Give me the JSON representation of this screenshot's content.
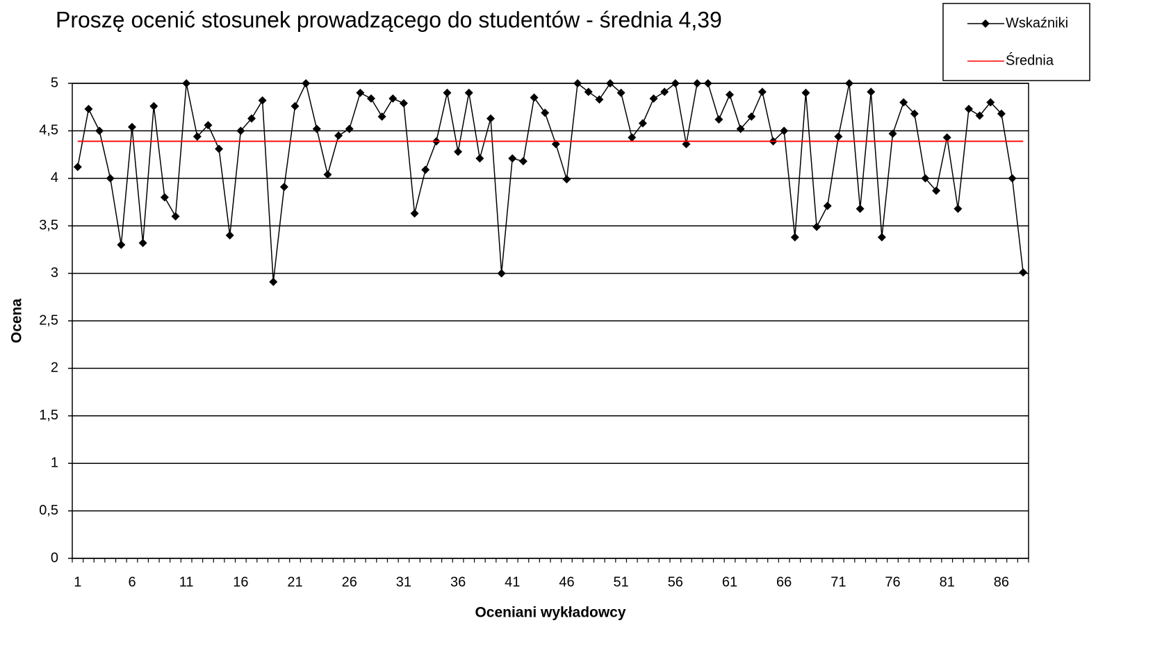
{
  "chart_data": {
    "type": "line",
    "title": "Proszę ocenić stosunek prowadzącego do studentów - średnia 4,39",
    "x_label": "Oceniani wykładowcy",
    "y_label": "Ocena",
    "categories": [
      "1",
      null,
      null,
      null,
      null,
      "6",
      null,
      null,
      null,
      null,
      "11",
      null,
      null,
      null,
      null,
      "16",
      null,
      null,
      null,
      null,
      "21",
      null,
      null,
      null,
      null,
      "26",
      null,
      null,
      null,
      null,
      "31",
      null,
      null,
      null,
      null,
      "36",
      null,
      null,
      null,
      null,
      "41",
      null,
      null,
      null,
      null,
      "46",
      null,
      null,
      null,
      null,
      "51",
      null,
      null,
      null,
      null,
      "56",
      null,
      null,
      null,
      null,
      "61",
      null,
      null,
      null,
      null,
      "66",
      null,
      null,
      null,
      null,
      "71",
      null,
      null,
      null,
      null,
      "76",
      null,
      null,
      null,
      null,
      "81",
      null,
      null,
      null,
      null,
      "86",
      null,
      null
    ],
    "series": [
      {
        "name": "Wskaźniki",
        "color": "#000000",
        "marker": "diamond",
        "values": [
          4.12,
          4.73,
          4.5,
          4.0,
          3.3,
          4.54,
          3.32,
          4.76,
          3.8,
          3.6,
          5.0,
          4.44,
          4.56,
          4.31,
          3.4,
          4.5,
          4.63,
          4.82,
          2.91,
          3.91,
          4.76,
          5.0,
          4.52,
          4.04,
          4.45,
          4.52,
          4.9,
          4.84,
          4.65,
          4.84,
          4.79,
          3.63,
          4.09,
          4.39,
          4.9,
          4.28,
          4.9,
          4.21,
          4.63,
          3.0,
          4.21,
          4.18,
          4.85,
          4.69,
          4.36,
          3.99,
          5.0,
          4.91,
          4.83,
          5.0,
          4.9,
          4.43,
          4.58,
          4.84,
          4.91,
          5.0,
          4.36,
          5.0,
          5.0,
          4.62,
          4.88,
          4.52,
          4.65,
          4.91,
          4.39,
          4.5,
          3.38,
          4.9,
          3.49,
          3.71,
          4.44,
          5.0,
          3.68,
          4.91,
          3.38,
          4.47,
          4.8,
          4.68,
          4.0,
          3.87,
          4.43,
          3.68,
          4.73,
          4.66,
          4.8,
          4.68,
          4.0,
          3.01
        ]
      },
      {
        "name": "Średnia",
        "color": "#ff0000",
        "marker": "none",
        "values": [
          4.39,
          4.39,
          4.39,
          4.39,
          4.39,
          4.39,
          4.39,
          4.39,
          4.39,
          4.39,
          4.39,
          4.39,
          4.39,
          4.39,
          4.39,
          4.39,
          4.39,
          4.39,
          4.39,
          4.39,
          4.39,
          4.39,
          4.39,
          4.39,
          4.39,
          4.39,
          4.39,
          4.39,
          4.39,
          4.39,
          4.39,
          4.39,
          4.39,
          4.39,
          4.39,
          4.39,
          4.39,
          4.39,
          4.39,
          4.39,
          4.39,
          4.39,
          4.39,
          4.39,
          4.39,
          4.39,
          4.39,
          4.39,
          4.39,
          4.39,
          4.39,
          4.39,
          4.39,
          4.39,
          4.39,
          4.39,
          4.39,
          4.39,
          4.39,
          4.39,
          4.39,
          4.39,
          4.39,
          4.39,
          4.39,
          4.39,
          4.39,
          4.39,
          4.39,
          4.39,
          4.39,
          4.39,
          4.39,
          4.39,
          4.39,
          4.39,
          4.39,
          4.39,
          4.39,
          4.39,
          4.39,
          4.39,
          4.39,
          4.39,
          4.39,
          4.39,
          4.39,
          4.39
        ]
      }
    ],
    "ylim": [
      0,
      5
    ],
    "yticks": [
      0,
      {
        "value": 0.5,
        "label": "0,5"
      },
      1,
      {
        "value": 1.5,
        "label": "1,5"
      },
      2,
      {
        "value": 2.5,
        "label": "2,5"
      },
      3,
      {
        "value": 3.5,
        "label": "3,5"
      },
      4,
      {
        "value": 4.5,
        "label": "4,5"
      },
      5
    ],
    "grid": true,
    "legend": "top-right"
  }
}
